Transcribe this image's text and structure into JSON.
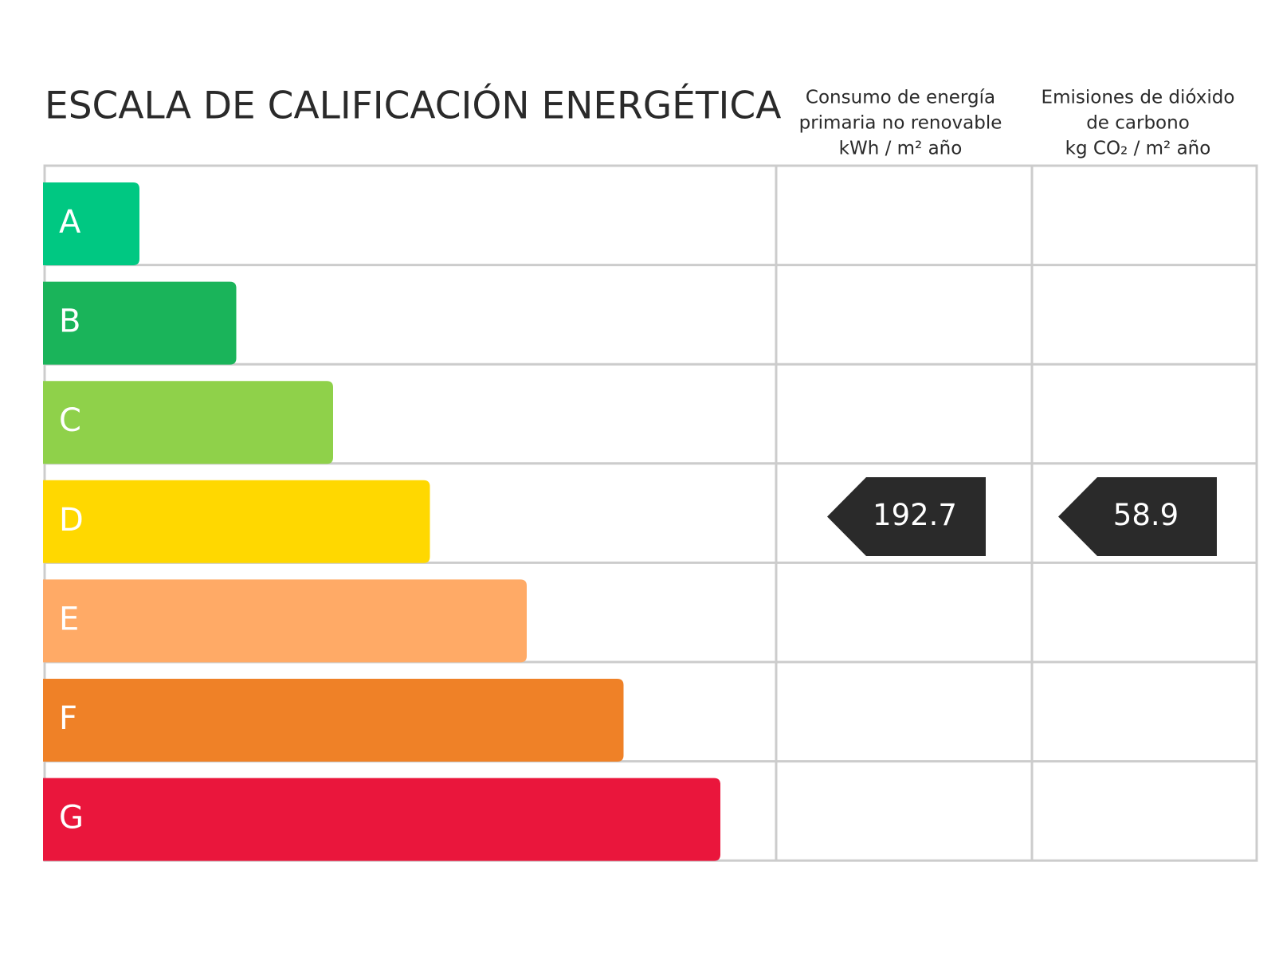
{
  "title": "ESCALA DE CALIFICACIÓN ENERGÉTICA",
  "columns": [
    {
      "header": [
        "Consumo de energía",
        "primaria no renovable",
        "kWh / m² año"
      ]
    },
    {
      "header": [
        "Emisiones de dióxido",
        "de carbono",
        "kg CO₂ / m² año"
      ]
    }
  ],
  "rows": [
    {
      "letter": "A",
      "color": "#00c882"
    },
    {
      "letter": "B",
      "color": "#1ab45a"
    },
    {
      "letter": "C",
      "color": "#8fd14a"
    },
    {
      "letter": "D",
      "color": "#ffd800",
      "values": [
        "192.7",
        "58.9"
      ]
    },
    {
      "letter": "E",
      "color": "#ffaa66"
    },
    {
      "letter": "F",
      "color": "#ef8127"
    },
    {
      "letter": "G",
      "color": "#ea163c"
    }
  ]
}
